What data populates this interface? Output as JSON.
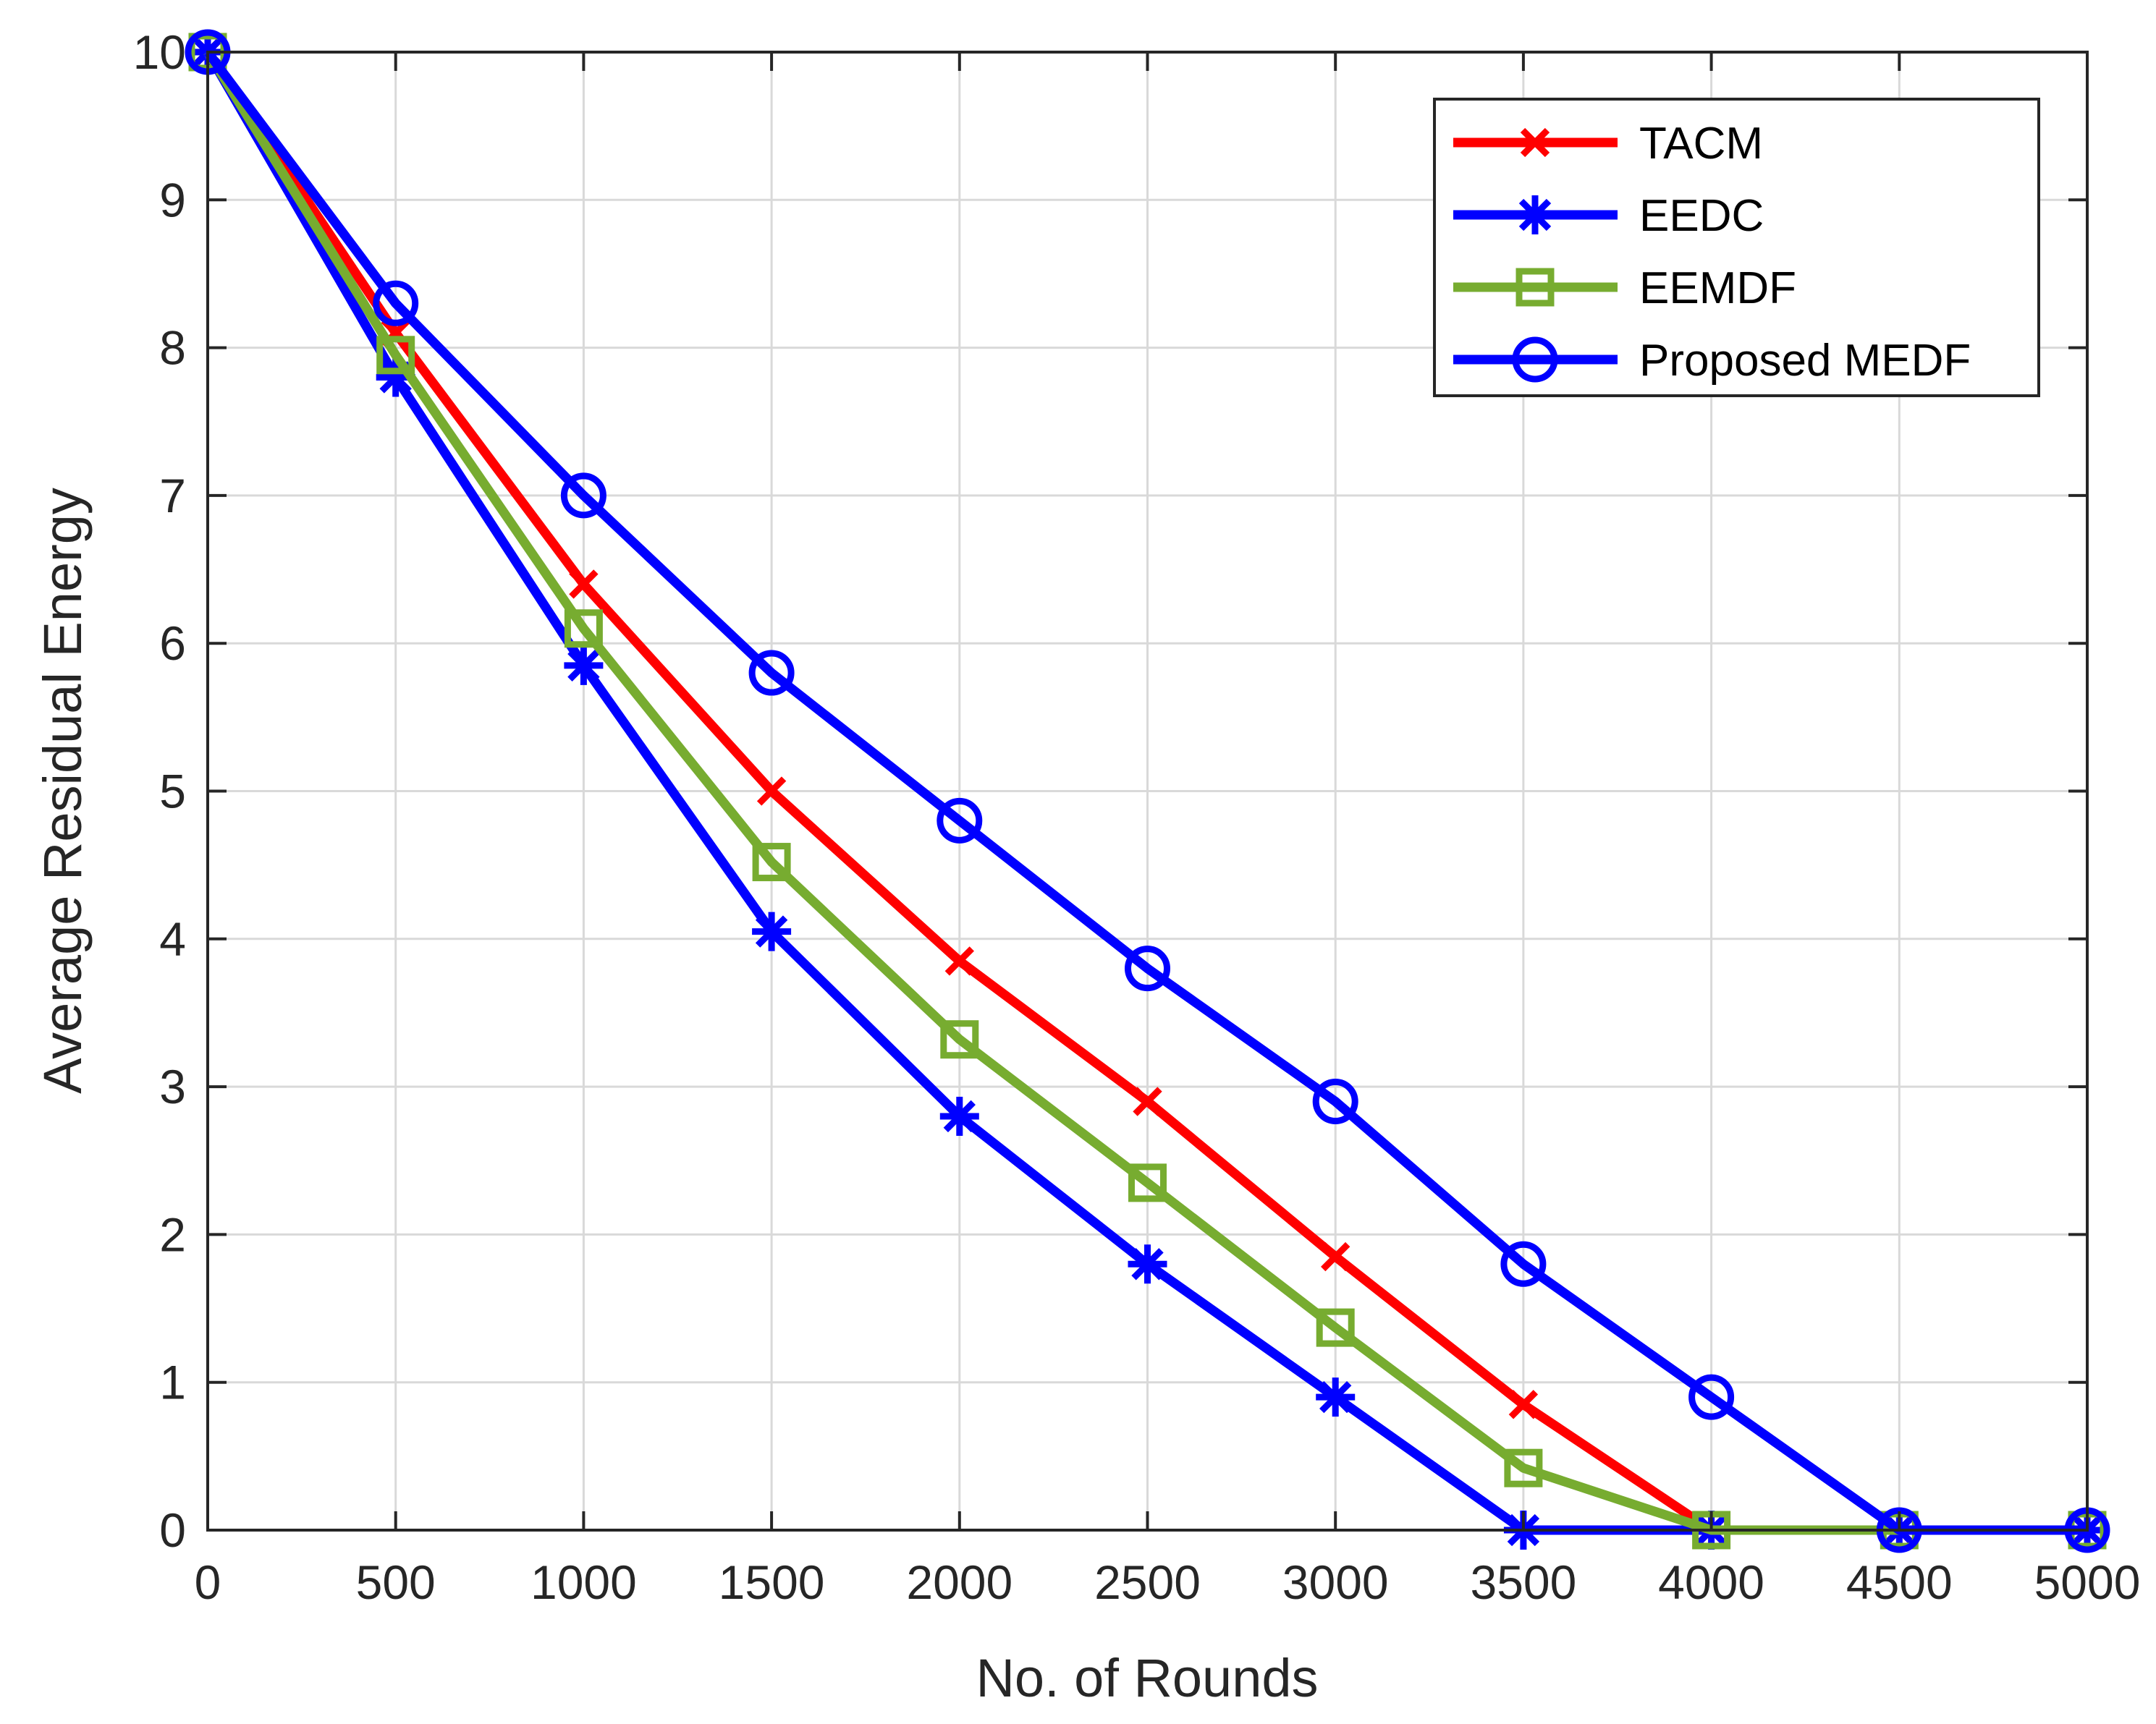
{
  "chart_data": {
    "type": "line",
    "title": "",
    "xlabel": "No. of Rounds",
    "ylabel": "Average Residual Energy",
    "xlim": [
      0,
      5000
    ],
    "ylim": [
      0,
      10
    ],
    "xticks": [
      0,
      500,
      1000,
      1500,
      2000,
      2500,
      3000,
      3500,
      4000,
      4500,
      5000
    ],
    "yticks": [
      0,
      1,
      2,
      3,
      4,
      5,
      6,
      7,
      8,
      9,
      10
    ],
    "grid": true,
    "legend_position": "top-right",
    "x": [
      0,
      500,
      1000,
      1500,
      2000,
      2500,
      3000,
      3500,
      4000,
      4500,
      5000
    ],
    "series": [
      {
        "name": "TACM",
        "color": "#ff0000",
        "marker": "x-cross",
        "values": [
          10,
          8.1,
          6.4,
          5.0,
          3.85,
          2.9,
          1.85,
          0.85,
          0,
          0,
          0
        ]
      },
      {
        "name": "EEDC",
        "color": "#0000ff",
        "marker": "asterisk",
        "values": [
          10,
          7.8,
          5.85,
          4.05,
          2.8,
          1.8,
          0.9,
          0,
          0,
          0,
          0
        ]
      },
      {
        "name": "EEMDF",
        "color": "#77ac30",
        "marker": "square",
        "values": [
          10,
          7.95,
          6.1,
          4.52,
          3.32,
          2.35,
          1.37,
          0.42,
          0,
          0,
          0
        ]
      },
      {
        "name": "Proposed MEDF",
        "color": "#0000ff",
        "marker": "circle",
        "values": [
          10,
          8.3,
          7.0,
          5.8,
          4.8,
          3.8,
          2.9,
          1.8,
          0.9,
          0,
          0
        ]
      }
    ]
  }
}
